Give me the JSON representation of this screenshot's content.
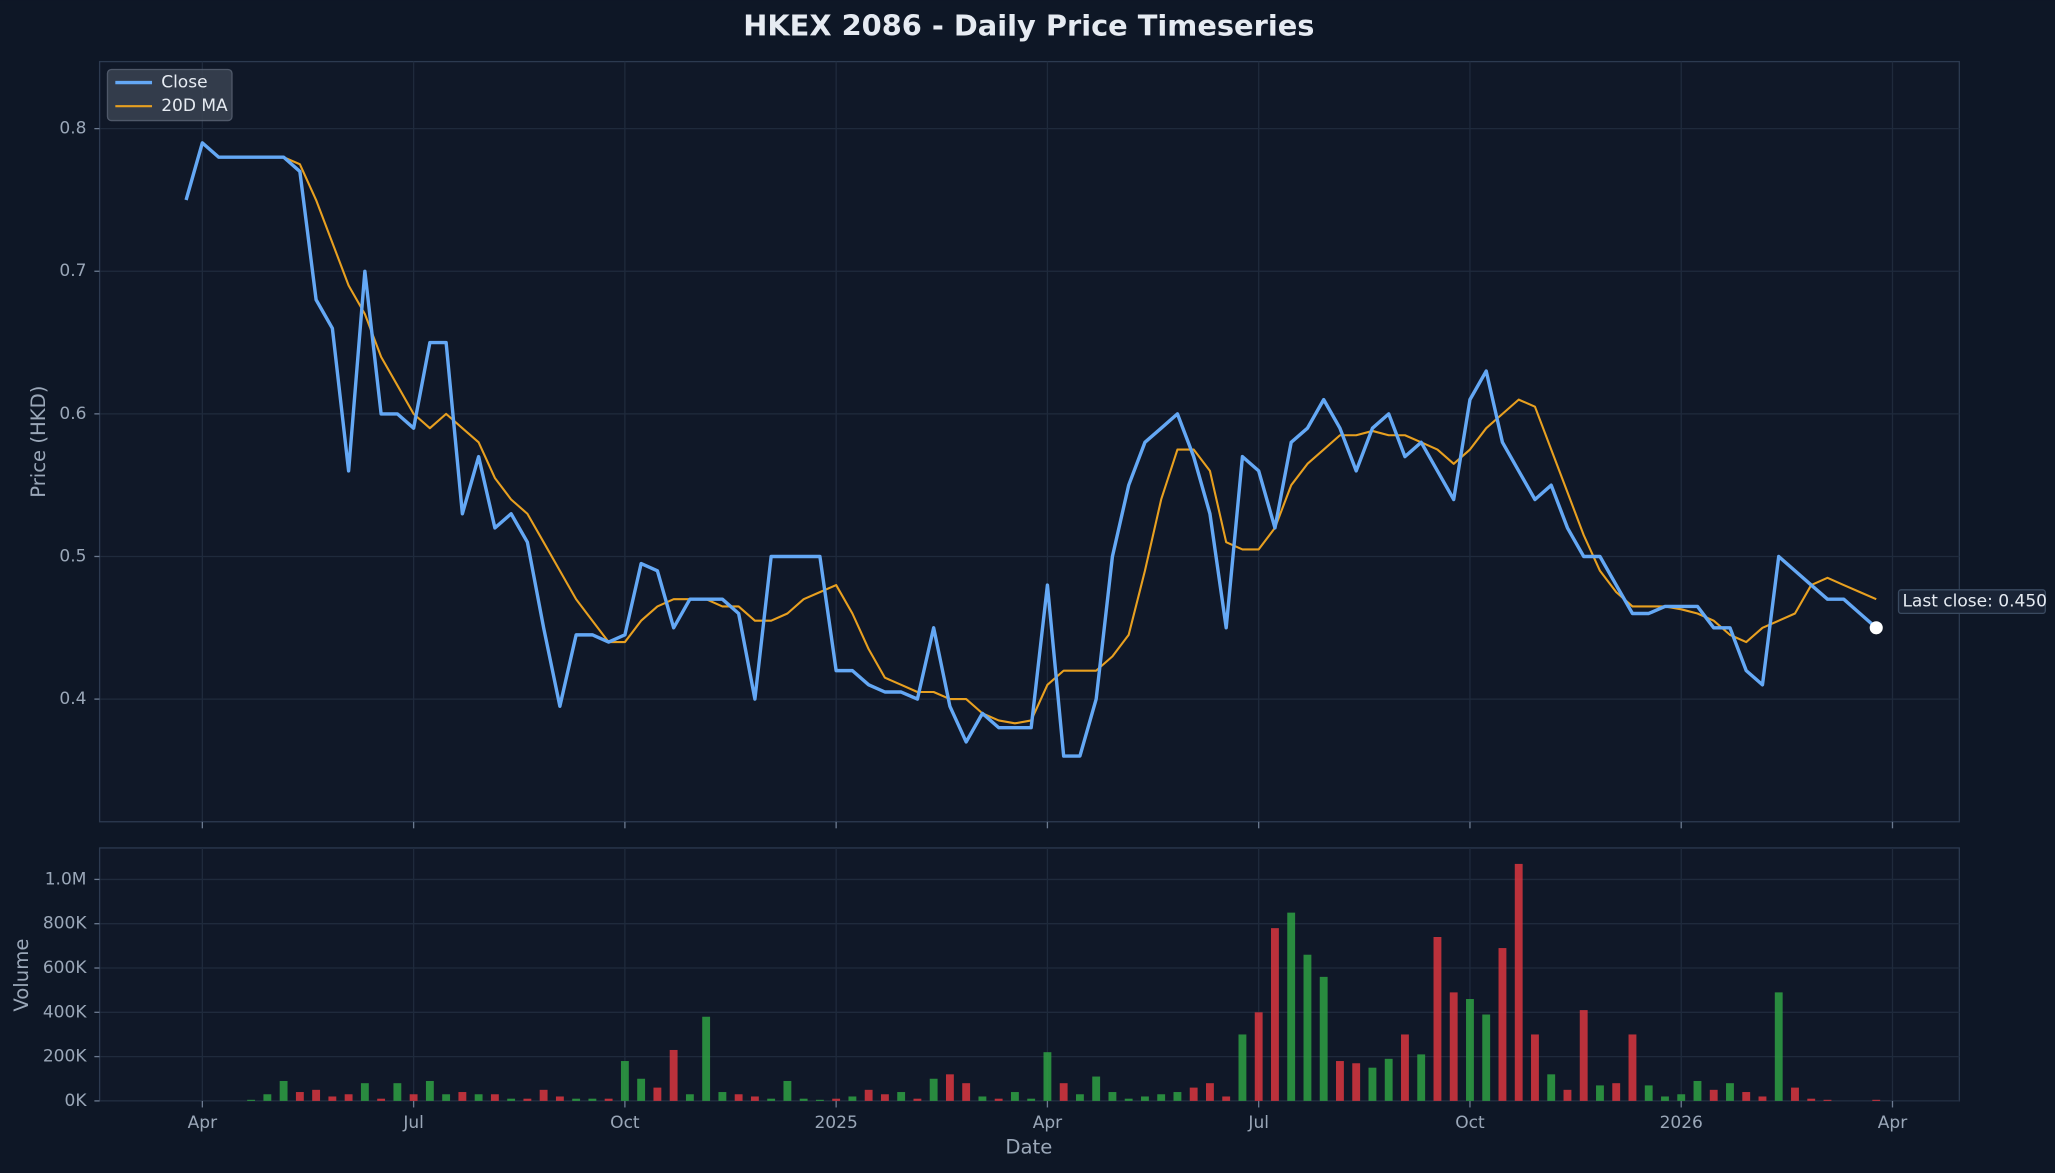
{
  "chart_data": {
    "type": "line",
    "title": "HKEX 2086 - Daily Price Timeseries",
    "ylabel": "Price (HKD)",
    "xlabel": "Date",
    "categories": [
      null,
      "Apr",
      null,
      null,
      null,
      null,
      null,
      null,
      null,
      null,
      null,
      null,
      null,
      null,
      "Jul",
      null,
      null,
      null,
      null,
      null,
      null,
      null,
      null,
      null,
      null,
      null,
      null,
      "Oct",
      null,
      null,
      null,
      null,
      null,
      null,
      null,
      null,
      null,
      null,
      null,
      null,
      "2025",
      null,
      null,
      null,
      null,
      null,
      null,
      null,
      null,
      null,
      null,
      null,
      null,
      "Apr",
      null,
      null,
      null,
      null,
      null,
      null,
      null,
      null,
      null,
      null,
      null,
      null,
      "Jul",
      null,
      null,
      null,
      null,
      null,
      null,
      null,
      null,
      null,
      null,
      null,
      null,
      "Oct",
      null,
      null,
      null,
      null,
      null,
      null,
      null,
      null,
      null,
      null,
      null,
      null,
      "2026",
      null,
      null,
      null,
      null,
      null,
      null,
      null,
      null,
      null,
      null,
      null,
      null,
      "Apr"
    ],
    "series": [
      {
        "name": "Close",
        "color": "#64a8f5",
        "values": [
          0.75,
          0.79,
          0.78,
          0.78,
          0.78,
          0.78,
          0.78,
          0.77,
          0.68,
          0.66,
          0.56,
          0.7,
          0.6,
          0.6,
          0.59,
          0.65,
          0.65,
          0.53,
          0.57,
          0.52,
          0.53,
          0.51,
          0.45,
          0.395,
          0.445,
          0.445,
          0.44,
          0.445,
          0.495,
          0.49,
          0.45,
          0.47,
          0.47,
          0.47,
          0.46,
          0.4,
          0.5,
          0.5,
          0.5,
          0.5,
          0.42,
          0.42,
          0.41,
          0.405,
          0.405,
          0.4,
          0.45,
          0.395,
          0.37,
          0.39,
          0.38,
          0.38,
          0.38,
          0.48,
          0.36,
          0.36,
          0.4,
          0.5,
          0.55,
          0.58,
          0.59,
          0.6,
          0.57,
          0.53,
          0.45,
          0.57,
          0.56,
          0.52,
          0.58,
          0.59,
          0.61,
          0.59,
          0.56,
          0.59,
          0.6,
          0.57,
          0.58,
          0.56,
          0.54,
          0.61,
          0.63,
          0.58,
          0.56,
          0.54,
          0.55,
          0.52,
          0.5,
          0.5,
          0.48,
          0.46,
          0.46,
          0.465,
          0.465,
          0.465,
          0.45,
          0.45,
          0.42,
          0.41,
          0.5,
          0.49,
          0.48,
          0.47,
          0.47,
          0.46,
          0.45,
          null
        ]
      },
      {
        "name": "20D MA",
        "color": "#e8a020",
        "values": [
          null,
          null,
          null,
          null,
          0.78,
          0.78,
          0.78,
          0.775,
          0.75,
          0.72,
          0.69,
          0.67,
          0.64,
          0.62,
          0.6,
          0.59,
          0.6,
          0.59,
          0.58,
          0.555,
          0.54,
          0.53,
          0.51,
          0.49,
          0.47,
          0.455,
          0.44,
          0.44,
          0.455,
          0.465,
          0.47,
          0.47,
          0.47,
          0.465,
          0.465,
          0.455,
          0.455,
          0.46,
          0.47,
          0.475,
          0.48,
          0.46,
          0.435,
          0.415,
          0.41,
          0.405,
          0.405,
          0.4,
          0.4,
          0.39,
          0.385,
          0.383,
          0.385,
          0.41,
          0.42,
          0.42,
          0.42,
          0.43,
          0.445,
          0.49,
          0.54,
          0.575,
          0.575,
          0.56,
          0.51,
          0.505,
          0.505,
          0.52,
          0.55,
          0.565,
          0.575,
          0.585,
          0.585,
          0.588,
          0.585,
          0.585,
          0.58,
          0.575,
          0.565,
          0.575,
          0.59,
          0.6,
          0.61,
          0.605,
          0.575,
          0.545,
          0.515,
          0.49,
          0.475,
          0.465,
          0.465,
          0.465,
          0.463,
          0.46,
          0.455,
          0.445,
          0.44,
          0.45,
          0.455,
          0.46,
          0.48,
          0.485,
          0.48,
          0.475,
          0.47,
          null
        ]
      }
    ],
    "ylim": [
      0.314,
      0.847
    ],
    "yticks": [
      0.4,
      0.5,
      0.6,
      0.7,
      0.8
    ],
    "grid": true,
    "legend": "upper left",
    "annotation": "Last close: 0.450",
    "volume": {
      "type": "bar",
      "ylabel": "Volume",
      "up_color": "#2ea043",
      "down_color": "#d9363e",
      "values": [
        0,
        0,
        0,
        0,
        5000,
        30000,
        90000,
        40000,
        50000,
        20000,
        30000,
        80000,
        10000,
        80000,
        30000,
        90000,
        30000,
        40000,
        30000,
        30000,
        10000,
        10000,
        50000,
        20000,
        10000,
        10000,
        10000,
        180000,
        100000,
        60000,
        230000,
        30000,
        380000,
        40000,
        30000,
        20000,
        10000,
        90000,
        10000,
        5000,
        10000,
        20000,
        50000,
        30000,
        40000,
        10000,
        100000,
        120000,
        80000,
        20000,
        10000,
        40000,
        10000,
        220000,
        80000,
        30000,
        110000,
        40000,
        10000,
        20000,
        30000,
        40000,
        60000,
        80000,
        20000,
        300000,
        400000,
        780000,
        850000,
        660000,
        560000,
        180000,
        170000,
        150000,
        190000,
        300000,
        210000,
        740000,
        490000,
        460000,
        390000,
        690000,
        1070000,
        300000,
        120000,
        50000,
        410000,
        70000,
        80000,
        300000,
        70000,
        20000,
        30000,
        90000,
        50000,
        80000,
        40000,
        20000,
        490000,
        60000,
        10000,
        5000,
        0,
        0,
        5000,
        null
      ],
      "ylim": [
        0,
        1142000
      ],
      "yticks": [
        {
          "value": 0,
          "label": "0K"
        },
        {
          "value": 200000,
          "label": "200K"
        },
        {
          "value": 400000,
          "label": "400K"
        },
        {
          "value": 600000,
          "label": "600K"
        },
        {
          "value": 800000,
          "label": "800K"
        },
        {
          "value": 1000000,
          "label": "1.0M"
        }
      ]
    }
  }
}
